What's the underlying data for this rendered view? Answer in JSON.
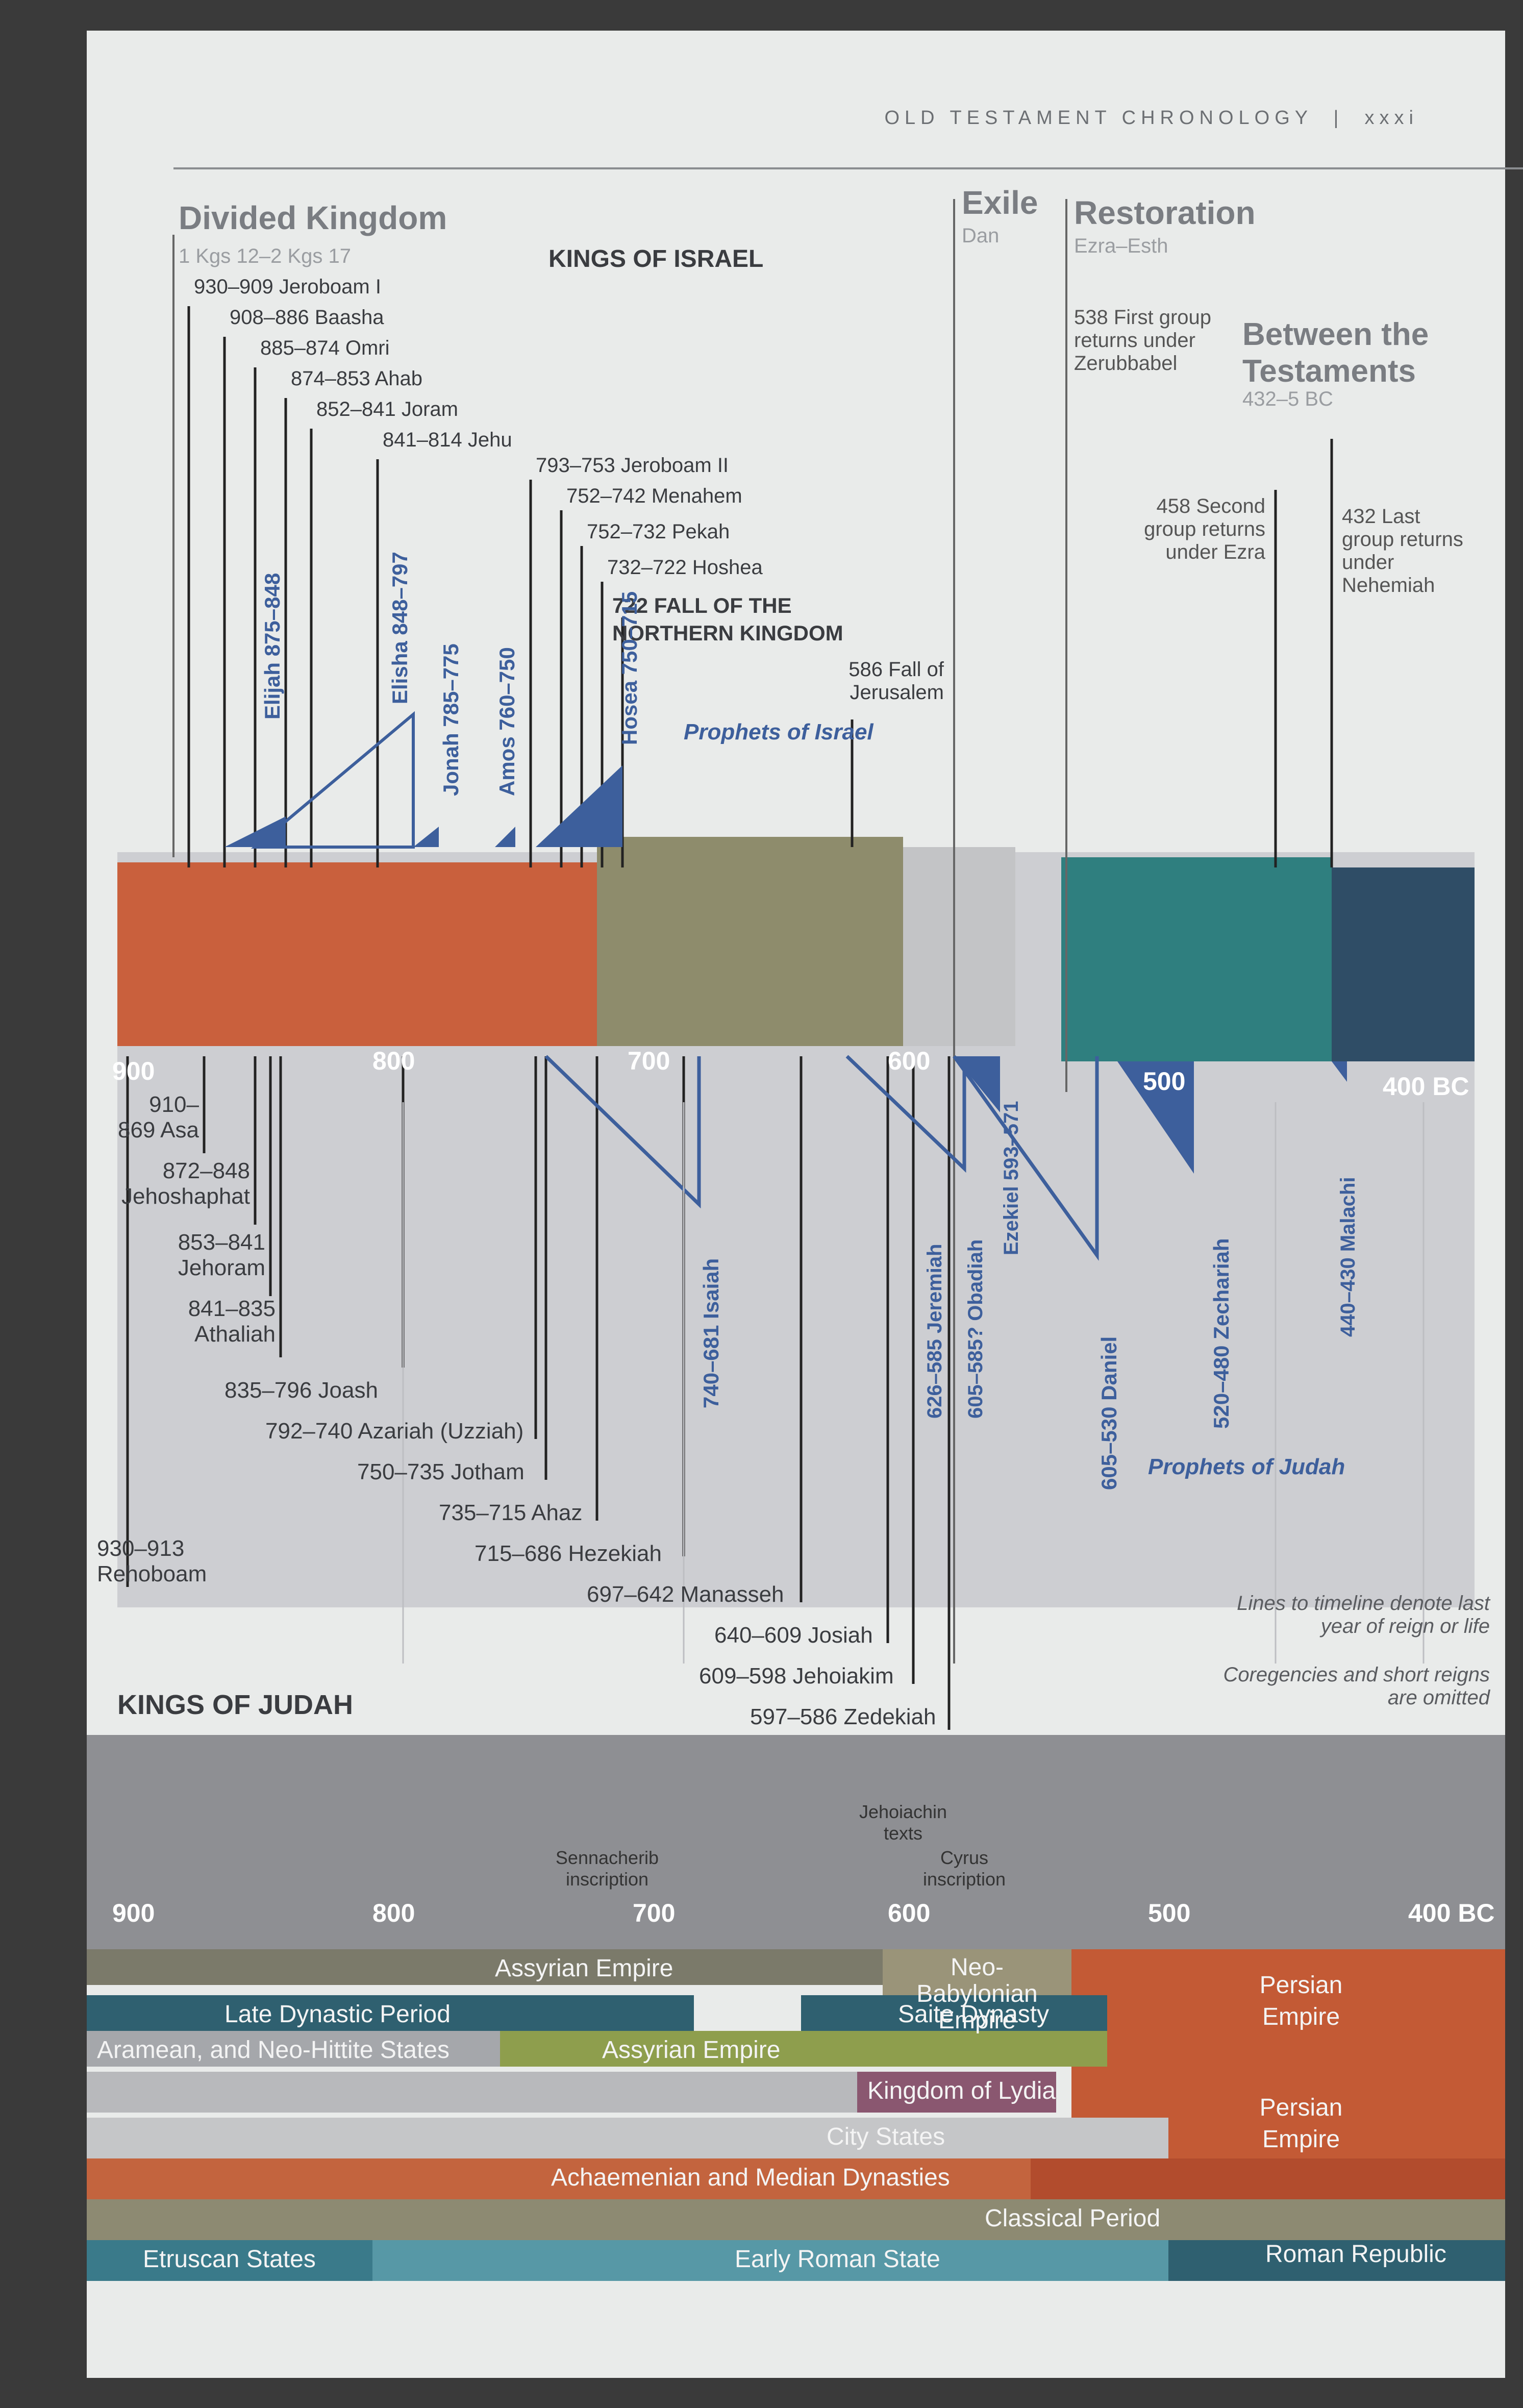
{
  "header": {
    "running_head": "OLD TESTAMENT CHRONOLOGY",
    "page_number": "xxxi"
  },
  "eras": {
    "divided_kingdom": {
      "title": "Divided Kingdom",
      "ref": "1 Kgs 12–2 Kgs 17"
    },
    "exile": {
      "title": "Exile",
      "ref": "Dan"
    },
    "restoration": {
      "title": "Restoration",
      "ref": "Ezra–Esth"
    },
    "between": {
      "title": "Between the Testaments",
      "ref": "432–5 BC"
    }
  },
  "israel": {
    "heading": "KINGS OF ISRAEL",
    "kings": [
      "930–909 Jeroboam I",
      "908–886 Baasha",
      "885–874 Omri",
      "874–853 Ahab",
      "852–841 Joram",
      "841–814 Jehu",
      "793–753 Jeroboam II",
      "752–742 Menahem",
      "752–732 Pekah",
      "732–722 Hoshea"
    ],
    "fall": "722 FALL OF THE NORTHERN KINGDOM",
    "prophets_label": "Prophets of Israel",
    "prophets": [
      "Elijah 875–848",
      "Elisha 848–797",
      "Jonah 785–775",
      "Amos 760–750",
      "Hosea 750–715"
    ]
  },
  "events": {
    "fall_jerusalem": "586 Fall of Jerusalem",
    "first_return": "538 First group returns under Zerubbabel",
    "second_return": "458 Second group returns under Ezra",
    "last_return": "432 Last group returns under Nehemiah"
  },
  "timeline_ticks": [
    "900",
    "800",
    "700",
    "600",
    "500",
    "400 BC"
  ],
  "judah": {
    "heading": "KINGS OF JUDAH",
    "kings": [
      "930–913 Rehoboam",
      "910–869 Asa",
      "872–848 Jehoshaphat",
      "853–841 Jehoram",
      "841–835 Athaliah",
      "835–796 Joash",
      "792–740 Azariah (Uzziah)",
      "750–735 Jotham",
      "735–715 Ahaz",
      "715–686 Hezekiah",
      "697–642 Manasseh",
      "640–609 Josiah",
      "609–598 Jehoiakim",
      "597–586 Zedekiah"
    ],
    "prophets_label": "Prophets of Judah",
    "prophets": [
      "740–681 Isaiah",
      "626–585 Jeremiah",
      "605–585? Obadiah",
      "Ezekiel 593–571",
      "605–530 Daniel",
      "520–480 Zechariah",
      "440–430 Malachi"
    ]
  },
  "notes": {
    "line1": "Lines to timeline denote last year of reign or life",
    "line2": "Coregencies and short reigns are omitted"
  },
  "inscriptions": [
    "Sennacherib inscription",
    "Jehoiachin texts",
    "Cyrus inscription"
  ],
  "world": {
    "assyrian_empire": "Assyrian Empire",
    "neo_babylonian": "Neo-Babylonian Empire",
    "persian_empire": "Persian Empire",
    "late_dynastic": "Late Dynastic Period",
    "saite": "Saite Dynasty",
    "aramean": "Aramean, and Neo-Hittite States",
    "assyrian_empire2": "Assyrian Empire",
    "lydia": "Kingdom of Lydia",
    "city_states": "City States",
    "achaemenian": "Achaemenian and Median Dynasties",
    "classical": "Classical Period",
    "etruscan": "Etruscan States",
    "early_roman": "Early Roman State",
    "roman_republic": "Roman Republic"
  },
  "colors": {
    "kingdom": "#c9603d",
    "exile": "#8e8c6c",
    "restoration": "#2f7f7f",
    "between": "#2f4d66",
    "prophet": "#3d5f9c",
    "band": "#8e8f93"
  }
}
